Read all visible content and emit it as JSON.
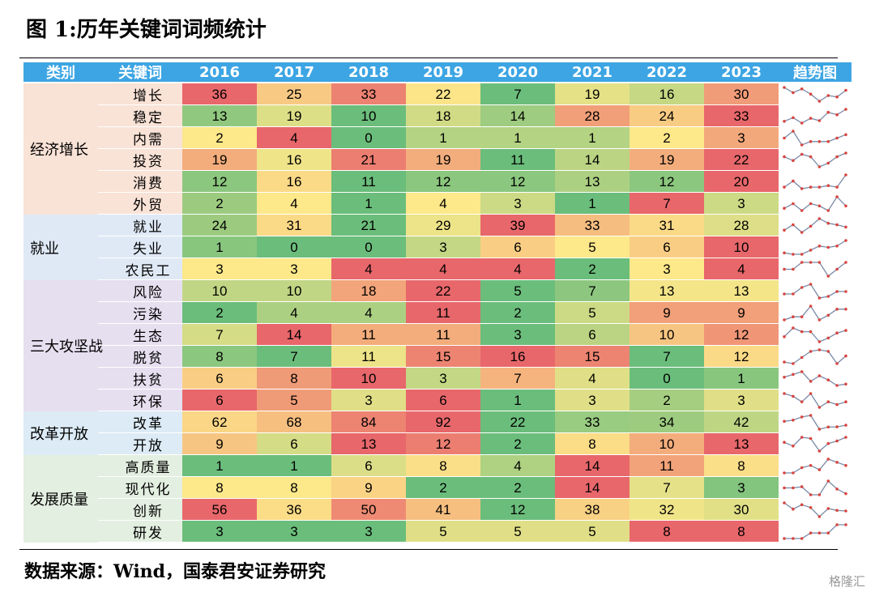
{
  "title": "图 1:历年关键词词频统计",
  "source": "数据来源：Wind，国泰君安证券研究",
  "watermark": "格隆汇",
  "headers": {
    "category": "类别",
    "keyword": "关键词",
    "trend": "趋势图"
  },
  "colors": {
    "header_bg": "#3da5e3",
    "scale_low": "#6bbd7b",
    "scale_mid": "#fde88a",
    "scale_high": "#e8676b",
    "spark_line": "#7a8aa8",
    "spark_dot": "#d9453f",
    "group_backgrounds": [
      "#f9e2d6",
      "#dfe9f6",
      "#e6dff0",
      "#dcebf5",
      "#e3efe0"
    ]
  },
  "chart_data": {
    "type": "heatmap",
    "title": "图 1:历年关键词词频统计",
    "columns": [
      "2016",
      "2017",
      "2018",
      "2019",
      "2020",
      "2021",
      "2022",
      "2023"
    ],
    "groups": [
      {
        "name": "经济增长",
        "rows": [
          {
            "keyword": "增长",
            "values": [
              36,
              25,
              33,
              22,
              7,
              19,
              16,
              30
            ]
          },
          {
            "keyword": "稳定",
            "values": [
              13,
              19,
              10,
              18,
              14,
              28,
              24,
              33
            ]
          },
          {
            "keyword": "内需",
            "values": [
              2,
              4,
              0,
              1,
              1,
              1,
              2,
              3
            ]
          },
          {
            "keyword": "投资",
            "values": [
              19,
              16,
              21,
              19,
              11,
              14,
              19,
              22
            ]
          },
          {
            "keyword": "消费",
            "values": [
              12,
              16,
              11,
              12,
              12,
              13,
              12,
              20
            ]
          },
          {
            "keyword": "外贸",
            "values": [
              2,
              4,
              1,
              4,
              3,
              1,
              7,
              3
            ]
          }
        ]
      },
      {
        "name": "就业",
        "rows": [
          {
            "keyword": "就业",
            "values": [
              24,
              31,
              21,
              29,
              39,
              33,
              31,
              28
            ]
          },
          {
            "keyword": "失业",
            "values": [
              1,
              0,
              0,
              3,
              6,
              5,
              6,
              10
            ]
          },
          {
            "keyword": "农民工",
            "values": [
              3,
              3,
              4,
              4,
              4,
              2,
              3,
              4
            ]
          }
        ]
      },
      {
        "name": "三大攻坚战",
        "rows": [
          {
            "keyword": "风险",
            "values": [
              10,
              10,
              18,
              22,
              5,
              7,
              13,
              13
            ]
          },
          {
            "keyword": "污染",
            "values": [
              2,
              4,
              4,
              11,
              2,
              5,
              9,
              9
            ]
          },
          {
            "keyword": "生态",
            "values": [
              7,
              14,
              11,
              11,
              3,
              6,
              10,
              12
            ]
          },
          {
            "keyword": "脱贫",
            "values": [
              8,
              7,
              11,
              15,
              16,
              15,
              7,
              12
            ]
          },
          {
            "keyword": "扶贫",
            "values": [
              6,
              8,
              10,
              3,
              7,
              4,
              0,
              1
            ]
          },
          {
            "keyword": "环保",
            "values": [
              6,
              5,
              3,
              6,
              1,
              3,
              2,
              3
            ]
          }
        ]
      },
      {
        "name": "改革开放",
        "rows": [
          {
            "keyword": "改革",
            "values": [
              62,
              68,
              84,
              92,
              22,
              33,
              34,
              42
            ]
          },
          {
            "keyword": "开放",
            "values": [
              9,
              6,
              13,
              12,
              2,
              8,
              10,
              13
            ]
          }
        ]
      },
      {
        "name": "发展质量",
        "rows": [
          {
            "keyword": "高质量",
            "values": [
              1,
              1,
              6,
              8,
              4,
              14,
              11,
              8
            ]
          },
          {
            "keyword": "现代化",
            "values": [
              8,
              8,
              9,
              2,
              2,
              14,
              7,
              3
            ]
          },
          {
            "keyword": "创新",
            "values": [
              56,
              36,
              50,
              41,
              12,
              38,
              32,
              30
            ]
          },
          {
            "keyword": "研发",
            "values": [
              3,
              3,
              3,
              5,
              5,
              5,
              8,
              8
            ]
          }
        ]
      }
    ]
  }
}
